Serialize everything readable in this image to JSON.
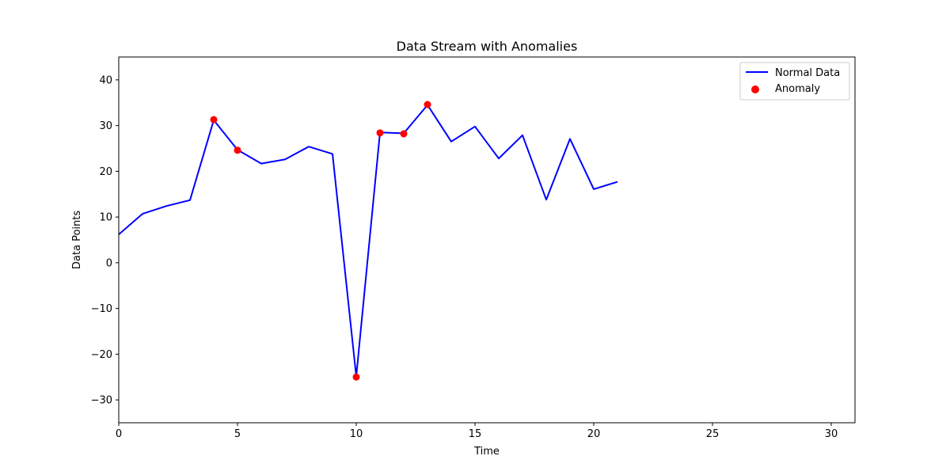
{
  "chart_data": {
    "type": "line",
    "title": "Data Stream with Anomalies",
    "xlabel": "Time",
    "ylabel": "Data Points",
    "xlim": [
      0,
      31
    ],
    "ylim": [
      -35,
      45
    ],
    "xticks": [
      0,
      5,
      10,
      15,
      20,
      25,
      30
    ],
    "yticks": [
      -30,
      -20,
      -10,
      0,
      10,
      20,
      30,
      40
    ],
    "grid": false,
    "legend_position": "top-right",
    "series": [
      {
        "name": "Normal Data",
        "kind": "line",
        "color": "#0000ff",
        "x": [
          0,
          1,
          2,
          3,
          4,
          5,
          6,
          7,
          8,
          9,
          10,
          11,
          12,
          13,
          14,
          15,
          16,
          17,
          18,
          19,
          20,
          21
        ],
        "y": [
          6.2,
          10.7,
          12.4,
          13.7,
          31.2,
          24.7,
          21.7,
          22.6,
          25.4,
          23.8,
          -24.9,
          28.5,
          28.3,
          34.5,
          26.5,
          29.8,
          22.8,
          27.9,
          13.8,
          27.1,
          16.1,
          17.7
        ]
      },
      {
        "name": "Anomaly",
        "kind": "scatter",
        "color": "#ff0000",
        "x": [
          4,
          5,
          10,
          11,
          12,
          13
        ],
        "y": [
          31.3,
          24.6,
          -25.0,
          28.4,
          28.2,
          34.6
        ]
      }
    ]
  }
}
